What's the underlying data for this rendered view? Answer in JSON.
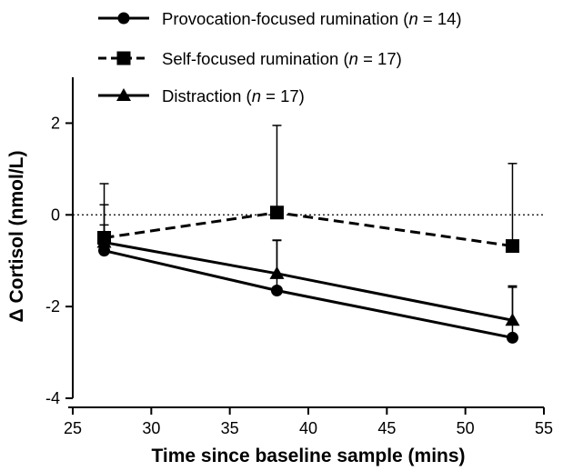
{
  "chart_data": {
    "type": "line",
    "title": "",
    "xlabel": "Time since baseline sample (mins)",
    "ylabel": "Δ Cortisol (nmol/L)",
    "xlim": [
      25,
      55
    ],
    "ylim": [
      -4,
      3
    ],
    "x_ticks": [
      25,
      30,
      35,
      40,
      45,
      50,
      55
    ],
    "y_ticks": [
      -4,
      -2,
      0,
      2
    ],
    "x_tick_labels": [
      "25",
      "30",
      "35",
      "40",
      "45",
      "50",
      "55"
    ],
    "y_tick_labels": [
      "-4",
      "-2",
      "0",
      "2"
    ],
    "reference_line": {
      "y": 0,
      "style": "dotted"
    },
    "legend_position": "top",
    "series": [
      {
        "name": "Provocation-focused rumination",
        "n_label": "n",
        "n_value": "= 14)",
        "marker": "circle",
        "line_style": "solid",
        "x": [
          27,
          38,
          53
        ],
        "y": [
          -0.78,
          -1.65,
          -2.68
        ],
        "error_up": [
          1.0,
          1.1,
          1.1
        ]
      },
      {
        "name": "Self-focused rumination",
        "n_label": "n",
        "n_value": "= 17)",
        "marker": "square",
        "line_style": "dashed",
        "x": [
          27,
          38,
          53
        ],
        "y": [
          -0.5,
          0.05,
          -0.68
        ],
        "error_up": [
          1.18,
          1.9,
          1.8
        ]
      },
      {
        "name": "Distraction",
        "n_label": "n",
        "n_value": "= 17)",
        "marker": "triangle",
        "line_style": "solid",
        "x": [
          27,
          38,
          53
        ],
        "y": [
          -0.6,
          -1.28,
          -2.3
        ],
        "error_up": [
          0.38,
          0.72,
          0.75
        ]
      }
    ],
    "colors": {
      "line": "#000000",
      "background": "#ffffff"
    }
  }
}
